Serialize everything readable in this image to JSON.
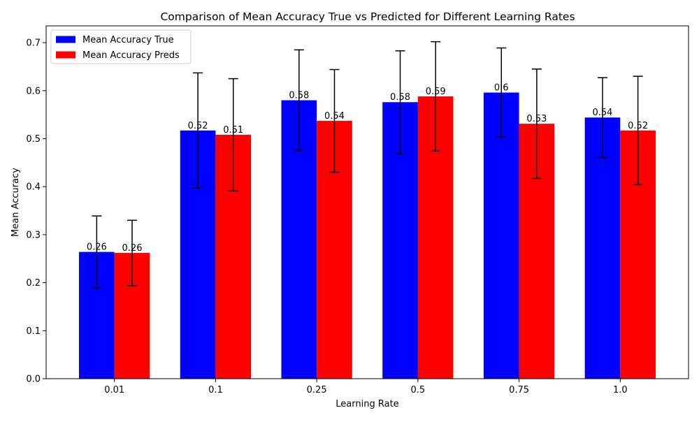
{
  "chart_data": {
    "type": "bar",
    "title": "Comparison of Mean Accuracy True vs Predicted for Different Learning Rates",
    "xlabel": "Learning Rate",
    "ylabel": "Mean Accuracy",
    "categories": [
      "0.01",
      "0.1",
      "0.25",
      "0.5",
      "0.75",
      "1.0"
    ],
    "ylim": [
      0,
      0.735
    ],
    "yticks": [
      "0.0",
      "0.1",
      "0.2",
      "0.3",
      "0.4",
      "0.5",
      "0.6",
      "0.7"
    ],
    "grid": false,
    "legend_position": "top-left",
    "series": [
      {
        "name": "Mean Accuracy True",
        "color": "#0000ff",
        "values": [
          0.264,
          0.517,
          0.58,
          0.576,
          0.596,
          0.544
        ],
        "error": [
          0.075,
          0.12,
          0.105,
          0.107,
          0.093,
          0.083
        ],
        "labels": [
          "0.26",
          "0.52",
          "0.58",
          "0.58",
          "0.6",
          "0.54"
        ]
      },
      {
        "name": "Mean Accuracy Preds",
        "color": "#ff0000",
        "values": [
          0.262,
          0.508,
          0.537,
          0.588,
          0.531,
          0.517
        ],
        "error": [
          0.068,
          0.117,
          0.107,
          0.114,
          0.114,
          0.113
        ],
        "labels": [
          "0.26",
          "0.51",
          "0.54",
          "0.59",
          "0.53",
          "0.52"
        ]
      }
    ]
  }
}
